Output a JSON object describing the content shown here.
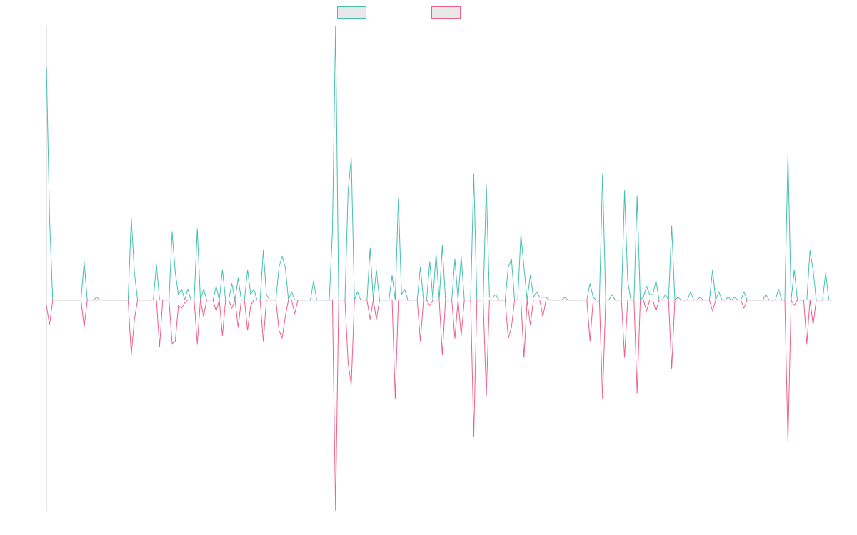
{
  "chart_data": {
    "type": "line",
    "ylim": [
      -77,
      100
    ],
    "legend": "top",
    "series": [
      {
        "color": "#45c0b0",
        "values": [
          85,
          30,
          0,
          0,
          0,
          0,
          0,
          0,
          0,
          0,
          0,
          0,
          14,
          0,
          0,
          0,
          1,
          0,
          0,
          0,
          0,
          0,
          0,
          0,
          0,
          0,
          0,
          30,
          10,
          0,
          0,
          0,
          0,
          0,
          0,
          13,
          0,
          0,
          0,
          0,
          25,
          10,
          2,
          4,
          0,
          4,
          0,
          0,
          26,
          0,
          4,
          0,
          0,
          0,
          5,
          0,
          11,
          0,
          0,
          6,
          0,
          8,
          0,
          0,
          11,
          2,
          4,
          0,
          0,
          18,
          2,
          0,
          0,
          0,
          12,
          16,
          12,
          0,
          3,
          0,
          0,
          0,
          0,
          0,
          0,
          7,
          0,
          0,
          0,
          0,
          0,
          25,
          100,
          0,
          0,
          0,
          40,
          52,
          0,
          3,
          0,
          0,
          0,
          19,
          0,
          11,
          0,
          0,
          0,
          0,
          9,
          0,
          37,
          2,
          4,
          0,
          0,
          0,
          0,
          12,
          0,
          0,
          14,
          0,
          17,
          0,
          20,
          0,
          0,
          0,
          15,
          0,
          16,
          0,
          0,
          0,
          46,
          0,
          0,
          0,
          42,
          1,
          1,
          2,
          0,
          0,
          0,
          12,
          15,
          0,
          0,
          24,
          12,
          0,
          9,
          1,
          3,
          1,
          1,
          1,
          0,
          0,
          0,
          0,
          0,
          1,
          0,
          0,
          0,
          0,
          0,
          0,
          0,
          6,
          1,
          0,
          0,
          46,
          0,
          0,
          2,
          0,
          0,
          0,
          40,
          7,
          0,
          0,
          38,
          0,
          1,
          5,
          2,
          2,
          7,
          0,
          0,
          2,
          0,
          27,
          0,
          1,
          0,
          0,
          0,
          3,
          0,
          0,
          1,
          0,
          0,
          0,
          11,
          0,
          3,
          0,
          0,
          1,
          0,
          1,
          0,
          0,
          3,
          0,
          0,
          0,
          0,
          0,
          0,
          2,
          0,
          0,
          0,
          4,
          0,
          0,
          53,
          0,
          11,
          0,
          0,
          0,
          0,
          18,
          11,
          0,
          0,
          0,
          10,
          0,
          0
        ]
      },
      {
        "color": "#f06088",
        "values": [
          -2,
          -9,
          0,
          0,
          0,
          0,
          0,
          0,
          0,
          0,
          0,
          0,
          -10,
          0,
          0,
          0,
          0,
          0,
          0,
          0,
          0,
          0,
          0,
          0,
          0,
          0,
          0,
          -20,
          -7,
          0,
          0,
          0,
          0,
          0,
          0,
          0,
          -17,
          0,
          0,
          0,
          -16,
          -15,
          -2,
          -3,
          -1,
          0,
          0,
          0,
          -16,
          0,
          -6,
          0,
          0,
          0,
          -4,
          0,
          -13,
          0,
          0,
          -3,
          0,
          -10,
          0,
          0,
          -11,
          -2,
          0,
          0,
          0,
          -15,
          0,
          0,
          0,
          0,
          -11,
          -14,
          -6,
          0,
          0,
          -5,
          0,
          0,
          0,
          0,
          0,
          0,
          0,
          0,
          0,
          0,
          0,
          0,
          -77,
          0,
          0,
          0,
          -23,
          -31,
          0,
          0,
          0,
          0,
          0,
          -7,
          0,
          -7,
          0,
          0,
          0,
          0,
          0,
          -36,
          0,
          0,
          0,
          0,
          0,
          0,
          0,
          -15,
          0,
          0,
          -2,
          0,
          0,
          0,
          -20,
          0,
          0,
          0,
          -14,
          0,
          -13,
          0,
          0,
          0,
          -50,
          0,
          0,
          0,
          -35,
          0,
          0,
          0,
          0,
          0,
          0,
          -14,
          -10,
          0,
          0,
          0,
          -21,
          0,
          -9,
          0,
          0,
          0,
          -6,
          0,
          0,
          0,
          0,
          0,
          0,
          0,
          0,
          0,
          0,
          0,
          0,
          0,
          0,
          -15,
          0,
          0,
          0,
          -36,
          0,
          0,
          0,
          0,
          0,
          0,
          -21,
          0,
          0,
          0,
          -34,
          0,
          0,
          -4,
          0,
          0,
          -4,
          0,
          0,
          0,
          0,
          -25,
          0,
          0,
          0,
          0,
          0,
          0,
          0,
          0,
          0,
          0,
          0,
          0,
          -4,
          0,
          0,
          0,
          0,
          0,
          0,
          0,
          0,
          0,
          -3,
          0,
          0,
          0,
          0,
          0,
          0,
          0,
          0,
          0,
          0,
          0,
          0,
          0,
          -52,
          0,
          -2,
          0,
          0,
          0,
          -16,
          0,
          -9,
          0,
          0,
          0,
          0,
          0,
          0
        ]
      }
    ]
  }
}
